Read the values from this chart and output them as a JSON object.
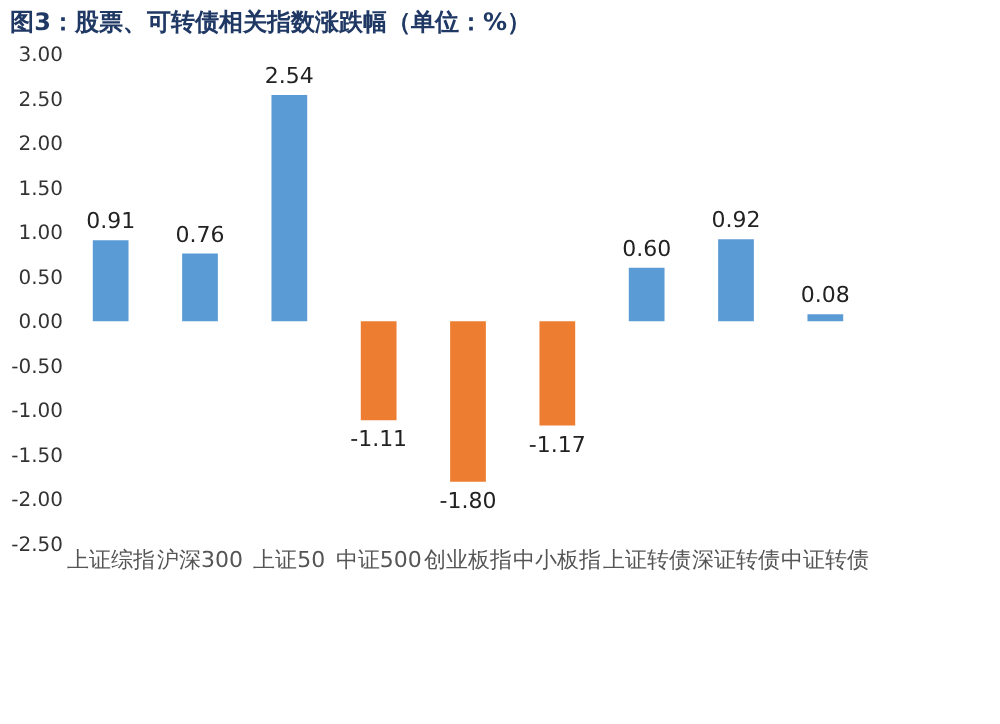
{
  "chart_data": {
    "type": "bar",
    "title": "图3：股票、可转债相关指数涨跌幅（单位：%）",
    "categories": [
      "上证综指",
      "沪深300",
      "上证50",
      "中证500",
      "创业板指",
      "中小板指",
      "上证转债",
      "深证转债",
      "中证转债"
    ],
    "values": [
      0.91,
      0.76,
      2.54,
      -1.11,
      -1.8,
      -1.17,
      0.6,
      0.92,
      0.08
    ],
    "colors": [
      "#5b9bd5",
      "#5b9bd5",
      "#5b9bd5",
      "#ed7d31",
      "#ed7d31",
      "#ed7d31",
      "#5b9bd5",
      "#5b9bd5",
      "#5b9bd5"
    ],
    "ylim": [
      -2.5,
      3.0
    ],
    "yticks": [
      {
        "value": -2.5,
        "label": "-2.50"
      },
      {
        "value": -2.0,
        "label": "-2.00"
      },
      {
        "value": -1.5,
        "label": "-1.50"
      },
      {
        "value": -1.0,
        "label": "-1.00"
      },
      {
        "value": -0.5,
        "label": "-0.50"
      },
      {
        "value": 0.0,
        "label": "0.00"
      },
      {
        "value": 0.5,
        "label": "0.50"
      },
      {
        "value": 1.0,
        "label": "1.00"
      },
      {
        "value": 1.5,
        "label": "1.50"
      },
      {
        "value": 2.0,
        "label": "2.00"
      },
      {
        "value": 2.5,
        "label": "2.50"
      },
      {
        "value": 3.0,
        "label": "3.00"
      }
    ],
    "value_labels": [
      "0.91",
      "0.76",
      "2.54",
      "-1.11",
      "-1.80",
      "-1.17",
      "0.60",
      "0.92",
      "0.08"
    ],
    "grid": false
  }
}
